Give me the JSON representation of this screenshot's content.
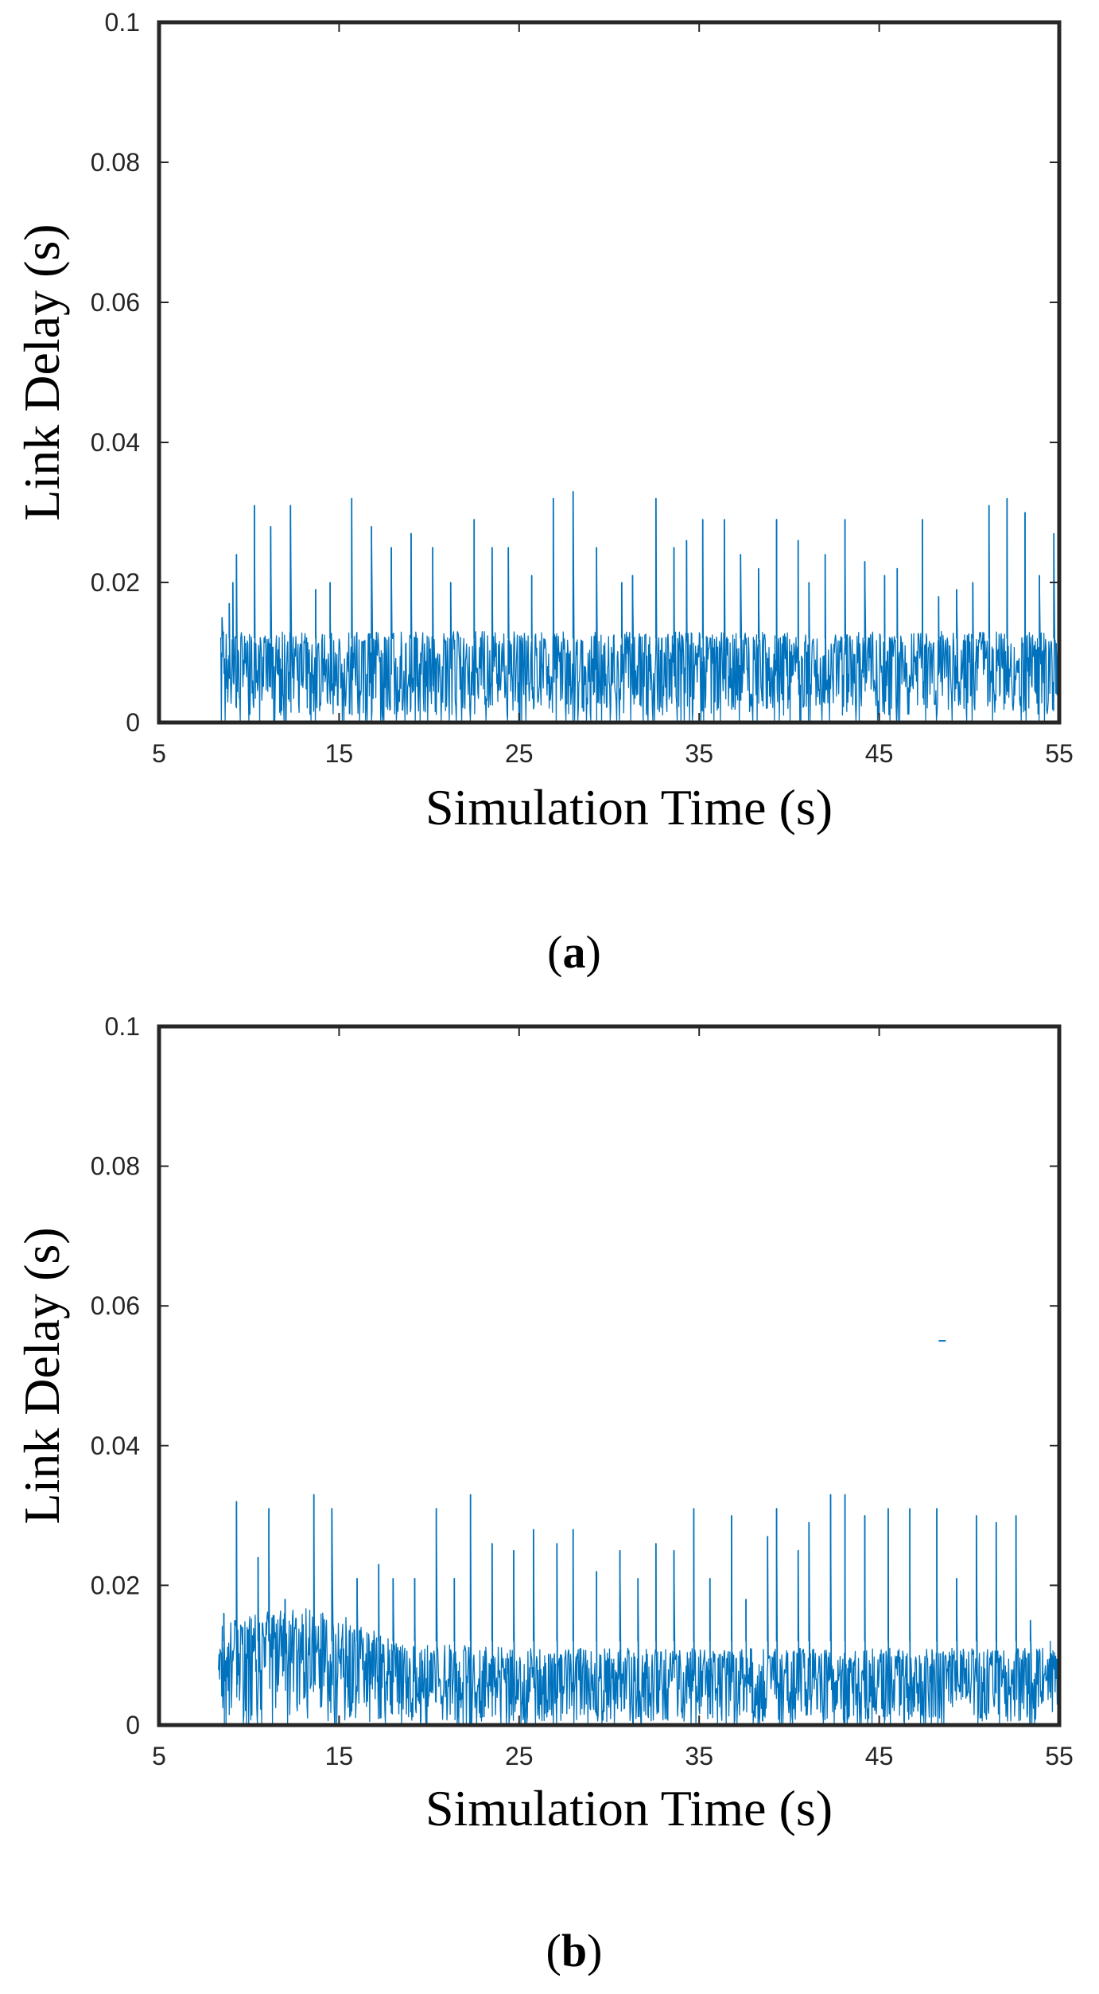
{
  "chart_data": [
    {
      "id": "a",
      "type": "line",
      "caption": "a",
      "xlabel": "Simulation Time (s)",
      "ylabel": "Link Delay (s)",
      "xlim": [
        5,
        55
      ],
      "ylim": [
        0,
        0.1
      ],
      "xticks": [
        5,
        15,
        25,
        35,
        45,
        55
      ],
      "xtick_labels": [
        "5",
        "15",
        "25",
        "35",
        "45",
        "55"
      ],
      "yticks": [
        0,
        0.02,
        0.04,
        0.06,
        0.08,
        0.1
      ],
      "ytick_labels": [
        "0",
        "0.02",
        "0.04",
        "0.06",
        "0.08",
        "0.1"
      ],
      "color": "#0072BD",
      "series": [
        {
          "name": "Link Delay",
          "x_start": 8.4,
          "x_end": 55,
          "baseline_range": [
            0.001,
            0.013
          ],
          "spikes": [
            {
              "x": 8.5,
              "y": 0.015
            },
            {
              "x": 8.9,
              "y": 0.017
            },
            {
              "x": 9.1,
              "y": 0.02
            },
            {
              "x": 9.3,
              "y": 0.024
            },
            {
              "x": 10.3,
              "y": 0.031
            },
            {
              "x": 11.2,
              "y": 0.028
            },
            {
              "x": 12.3,
              "y": 0.031
            },
            {
              "x": 13.7,
              "y": 0.019
            },
            {
              "x": 14.5,
              "y": 0.02
            },
            {
              "x": 15.7,
              "y": 0.032
            },
            {
              "x": 16.8,
              "y": 0.028
            },
            {
              "x": 17.9,
              "y": 0.025
            },
            {
              "x": 19.0,
              "y": 0.027
            },
            {
              "x": 20.2,
              "y": 0.025
            },
            {
              "x": 21.2,
              "y": 0.02
            },
            {
              "x": 22.5,
              "y": 0.029
            },
            {
              "x": 23.5,
              "y": 0.025
            },
            {
              "x": 24.4,
              "y": 0.025
            },
            {
              "x": 25.7,
              "y": 0.021
            },
            {
              "x": 26.9,
              "y": 0.032
            },
            {
              "x": 28.0,
              "y": 0.033
            },
            {
              "x": 29.3,
              "y": 0.025
            },
            {
              "x": 30.7,
              "y": 0.02
            },
            {
              "x": 31.3,
              "y": 0.021
            },
            {
              "x": 32.6,
              "y": 0.032
            },
            {
              "x": 33.6,
              "y": 0.025
            },
            {
              "x": 34.3,
              "y": 0.026
            },
            {
              "x": 35.2,
              "y": 0.029
            },
            {
              "x": 36.4,
              "y": 0.029
            },
            {
              "x": 37.3,
              "y": 0.024
            },
            {
              "x": 38.3,
              "y": 0.022
            },
            {
              "x": 39.3,
              "y": 0.029
            },
            {
              "x": 40.5,
              "y": 0.026
            },
            {
              "x": 41.1,
              "y": 0.02
            },
            {
              "x": 42.0,
              "y": 0.024
            },
            {
              "x": 43.1,
              "y": 0.029
            },
            {
              "x": 44.2,
              "y": 0.023
            },
            {
              "x": 45.3,
              "y": 0.021
            },
            {
              "x": 46.0,
              "y": 0.022
            },
            {
              "x": 47.4,
              "y": 0.029
            },
            {
              "x": 48.3,
              "y": 0.018
            },
            {
              "x": 49.3,
              "y": 0.019
            },
            {
              "x": 50.2,
              "y": 0.02
            },
            {
              "x": 51.1,
              "y": 0.031
            },
            {
              "x": 52.1,
              "y": 0.032
            },
            {
              "x": 53.1,
              "y": 0.03
            },
            {
              "x": 53.9,
              "y": 0.021
            },
            {
              "x": 54.7,
              "y": 0.027
            }
          ]
        }
      ]
    },
    {
      "id": "b",
      "type": "line",
      "caption": "b",
      "xlabel": "Simulation Time (s)",
      "ylabel": "Link Delay (s)",
      "xlim": [
        5,
        55
      ],
      "ylim": [
        0,
        0.1
      ],
      "xticks": [
        5,
        15,
        25,
        35,
        45,
        55
      ],
      "xtick_labels": [
        "5",
        "15",
        "25",
        "35",
        "45",
        "55"
      ],
      "yticks": [
        0,
        0.02,
        0.04,
        0.06,
        0.08,
        0.1
      ],
      "ytick_labels": [
        "0",
        "0.02",
        "0.04",
        "0.06",
        "0.08",
        "0.1"
      ],
      "color": "#0072BD",
      "series": [
        {
          "name": "Link Delay",
          "x_start": 8.3,
          "x_end": 55,
          "baseline_profile": [
            {
              "x": 8.3,
              "hi": 0.014
            },
            {
              "x": 10.0,
              "hi": 0.016
            },
            {
              "x": 13.0,
              "hi": 0.017
            },
            {
              "x": 16.0,
              "hi": 0.015
            },
            {
              "x": 18.0,
              "hi": 0.012
            },
            {
              "x": 25.0,
              "hi": 0.011
            },
            {
              "x": 55.0,
              "hi": 0.011
            }
          ],
          "spikes": [
            {
              "x": 8.6,
              "y": 0.016
            },
            {
              "x": 9.3,
              "y": 0.032
            },
            {
              "x": 10.5,
              "y": 0.024
            },
            {
              "x": 11.1,
              "y": 0.031
            },
            {
              "x": 12.0,
              "y": 0.018
            },
            {
              "x": 13.6,
              "y": 0.033
            },
            {
              "x": 14.6,
              "y": 0.031
            },
            {
              "x": 16.0,
              "y": 0.021
            },
            {
              "x": 17.2,
              "y": 0.023
            },
            {
              "x": 18.0,
              "y": 0.021
            },
            {
              "x": 19.2,
              "y": 0.021
            },
            {
              "x": 20.4,
              "y": 0.031
            },
            {
              "x": 21.4,
              "y": 0.021
            },
            {
              "x": 22.3,
              "y": 0.033
            },
            {
              "x": 23.5,
              "y": 0.026
            },
            {
              "x": 24.7,
              "y": 0.025
            },
            {
              "x": 25.8,
              "y": 0.028
            },
            {
              "x": 27.1,
              "y": 0.026
            },
            {
              "x": 28.0,
              "y": 0.028
            },
            {
              "x": 29.3,
              "y": 0.022
            },
            {
              "x": 30.6,
              "y": 0.025
            },
            {
              "x": 31.6,
              "y": 0.021
            },
            {
              "x": 32.6,
              "y": 0.026
            },
            {
              "x": 33.6,
              "y": 0.025
            },
            {
              "x": 34.7,
              "y": 0.031
            },
            {
              "x": 35.6,
              "y": 0.021
            },
            {
              "x": 36.8,
              "y": 0.03
            },
            {
              "x": 37.6,
              "y": 0.018
            },
            {
              "x": 38.8,
              "y": 0.027
            },
            {
              "x": 39.3,
              "y": 0.031
            },
            {
              "x": 40.5,
              "y": 0.025
            },
            {
              "x": 41.1,
              "y": 0.029
            },
            {
              "x": 42.3,
              "y": 0.033
            },
            {
              "x": 43.1,
              "y": 0.033
            },
            {
              "x": 44.2,
              "y": 0.03
            },
            {
              "x": 45.5,
              "y": 0.031
            },
            {
              "x": 46.7,
              "y": 0.031
            },
            {
              "x": 48.2,
              "y": 0.031
            },
            {
              "x": 49.3,
              "y": 0.021
            },
            {
              "x": 50.4,
              "y": 0.03
            },
            {
              "x": 51.5,
              "y": 0.029
            },
            {
              "x": 52.6,
              "y": 0.03
            },
            {
              "x": 53.4,
              "y": 0.015
            },
            {
              "x": 54.5,
              "y": 0.012
            }
          ],
          "outliers": [
            {
              "x_start": 48.3,
              "x_end": 48.7,
              "y": 0.055
            }
          ]
        }
      ]
    }
  ]
}
